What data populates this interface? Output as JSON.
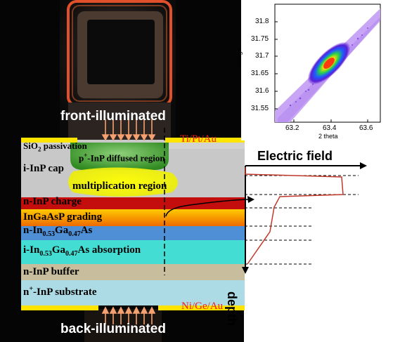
{
  "labels": {
    "front": "front-illuminated",
    "back": "back-illuminated",
    "top_contact": "Ti/Pt/Au",
    "bottom_contact": "Ni/Ge/Au",
    "electric_field": "Electric field",
    "depth": "depth",
    "diffused_region_prefix": "p",
    "diffused_region_sup": "+",
    "diffused_region_suffix": "-InP diffused region",
    "multiplication": "multiplication region",
    "passivation_prefix": "SiO",
    "passivation_sub": "2",
    "passivation_suffix": " passivation"
  },
  "layers": {
    "cap": "i-InP cap",
    "charge": "n-InP charge",
    "grading": "InGaAsP grading",
    "ingaas_prefix": "n-In",
    "ingaas_sub1": "0.53",
    "ingaas_mid": "Ga",
    "ingaas_sub2": "0.47",
    "ingaas_suffix": "As",
    "abs_prefix": "i-In",
    "abs_sub1": "0.53",
    "abs_mid": "Ga",
    "abs_sub2": "0.47",
    "abs_suffix": "As absorption",
    "buffer": "n-InP buffer",
    "substrate_prefix": "n",
    "substrate_sup": "+",
    "substrate_suffix": "-InP substrate"
  },
  "inset": {
    "xlabel": "2 theta",
    "ylabel": "omega",
    "xticks": [
      "63.2",
      "63.4",
      "63.6"
    ],
    "yticks": [
      "31.8",
      "31.75",
      "31.7",
      "31.65",
      "31.6",
      "31.55"
    ]
  },
  "colors": {
    "cap": "#c8c8c8",
    "charge": "#c40d0d",
    "grading": "#f5a000",
    "ingaas": "#4f8fd6",
    "absorption": "#44ddd3",
    "buffer": "#c8bd9c",
    "substrate": "#acdbe6",
    "contact": "#ffe400",
    "diffused": "#3c9a28",
    "multiplication": "#f4f000"
  }
}
